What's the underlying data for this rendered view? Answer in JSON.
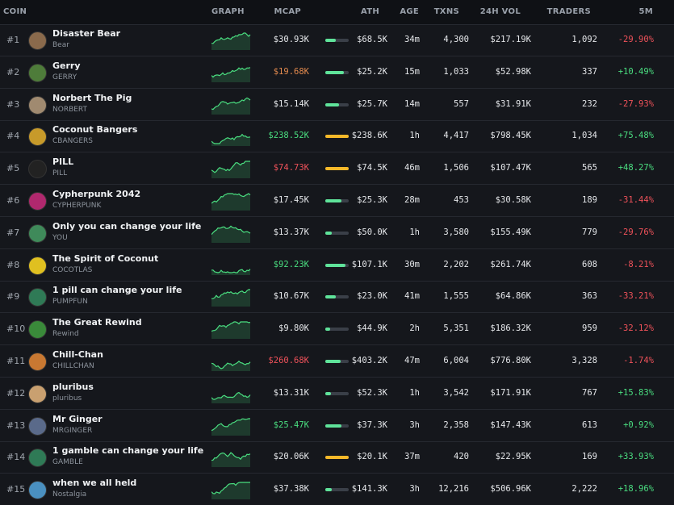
{
  "table": {
    "columns": [
      "COIN",
      "GRAPH",
      "MCAP",
      "ATH",
      "AGE",
      "TXNS",
      "24H VOL",
      "TRADERS",
      "5M"
    ],
    "rows": [
      {
        "rank": "#1",
        "name": "Disaster Bear",
        "ticker": "Bear",
        "mcap": "$30.93K",
        "ath": "$68.5K",
        "age": "34m",
        "txns": "4,300",
        "volume": "$217.19K",
        "traders": "1,092",
        "change": "-29.90%"
      },
      {
        "rank": "#2",
        "name": "Gerry",
        "ticker": "GERRY",
        "mcap": "$19.68K",
        "mcap_color": "#e38a4e",
        "ath": "$25.2K",
        "age": "15m",
        "txns": "1,033",
        "volume": "$52.98K",
        "traders": "337",
        "change": "+10.49%"
      },
      {
        "rank": "#3",
        "name": "Norbert The Pig",
        "ticker": "NORBERT",
        "mcap": "$15.14K",
        "ath": "$25.7K",
        "age": "14m",
        "txns": "557",
        "volume": "$31.91K",
        "traders": "232",
        "change": "-27.93%"
      },
      {
        "rank": "#4",
        "name": "Coconut Bangers",
        "ticker": "CBANGERS",
        "mcap": "$238.52K",
        "mcap_color": "#4ade80",
        "ath": "$238.6K",
        "age": "1h",
        "txns": "4,417",
        "volume": "$798.45K",
        "traders": "1,034",
        "change": "+75.48%"
      },
      {
        "rank": "#5",
        "name": "PILL",
        "ticker": "PILL",
        "mcap": "$74.73K",
        "mcap_color": "#f0525a",
        "ath": "$74.5K",
        "age": "46m",
        "txns": "1,506",
        "volume": "$107.47K",
        "traders": "565",
        "change": "+48.27%"
      },
      {
        "rank": "#6",
        "name": "Cypherpunk 2042",
        "ticker": "CYPHERPUNK",
        "mcap": "$17.45K",
        "ath": "$25.3K",
        "age": "28m",
        "txns": "453",
        "volume": "$30.58K",
        "traders": "189",
        "change": "-31.44%"
      },
      {
        "rank": "#7",
        "name": "Only you can change your life",
        "ticker": "YOU",
        "mcap": "$13.37K",
        "ath": "$50.0K",
        "age": "1h",
        "txns": "3,580",
        "volume": "$155.49K",
        "traders": "779",
        "change": "-29.76%"
      },
      {
        "rank": "#8",
        "name": "The Spirit of Coconut",
        "ticker": "COCOTLAS",
        "mcap": "$92.23K",
        "mcap_color": "#4ade80",
        "ath": "$107.1K",
        "age": "30m",
        "txns": "2,202",
        "volume": "$261.74K",
        "traders": "608",
        "change": "-8.21%"
      },
      {
        "rank": "#9",
        "name": "1 pill can change your life",
        "ticker": "PUMPFUN",
        "mcap": "$10.67K",
        "ath": "$23.0K",
        "age": "41m",
        "txns": "1,555",
        "volume": "$64.86K",
        "traders": "363",
        "change": "-33.21%"
      },
      {
        "rank": "#10",
        "name": "The Great Rewind",
        "ticker": "Rewind",
        "mcap": "$9.80K",
        "ath": "$44.9K",
        "age": "2h",
        "txns": "5,351",
        "volume": "$186.32K",
        "traders": "959",
        "change": "-32.12%"
      },
      {
        "rank": "#11",
        "name": "Chill-Chan",
        "ticker": "CHILLCHAN",
        "mcap": "$260.68K",
        "mcap_color": "#f0525a",
        "ath": "$403.2K",
        "age": "47m",
        "txns": "6,004",
        "volume": "$776.80K",
        "traders": "3,328",
        "change": "-1.74%"
      },
      {
        "rank": "#12",
        "name": "pluribus",
        "ticker": "pluribus",
        "mcap": "$13.31K",
        "ath": "$52.3K",
        "age": "1h",
        "txns": "3,542",
        "volume": "$171.91K",
        "traders": "767",
        "change": "+15.83%"
      },
      {
        "rank": "#13",
        "name": "Mr Ginger",
        "ticker": "MRGINGER",
        "mcap": "$25.47K",
        "mcap_color": "#4ade80",
        "ath": "$37.3K",
        "age": "3h",
        "txns": "2,358",
        "volume": "$147.43K",
        "traders": "613",
        "change": "+0.92%"
      },
      {
        "rank": "#14",
        "name": "1 gamble can change your life",
        "ticker": "GAMBLE",
        "mcap": "$20.06K",
        "ath": "$20.1K",
        "age": "37m",
        "txns": "420",
        "volume": "$22.95K",
        "traders": "169",
        "change": "+33.93%"
      },
      {
        "rank": "#15",
        "name": "when we all held",
        "ticker": "Nostalgia",
        "mcap": "$37.38K",
        "ath": "$141.3K",
        "age": "3h",
        "txns": "12,216",
        "volume": "$506.96K",
        "traders": "2,222",
        "change": "+18.96%"
      }
    ]
  }
}
